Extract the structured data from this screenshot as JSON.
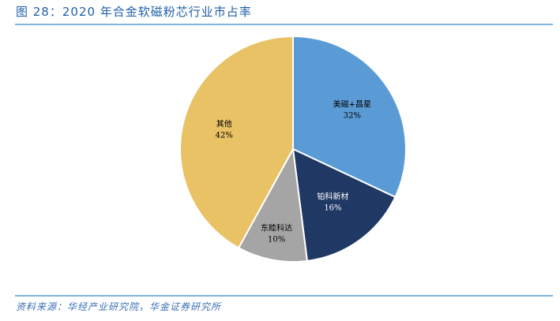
{
  "title": "图 28：2020 年合金软磁粉芯行业市占率",
  "source": "资料来源：华经产业研究院，华金证券研究所",
  "chart_data": {
    "type": "pie",
    "title": "图 28：2020 年合金软磁粉芯行业市占率",
    "start": "top",
    "direction": "clockwise",
    "slices": [
      {
        "label": "美磁+昌星",
        "value": 32,
        "text": "32%",
        "color": "#5b9bd5",
        "text_color": "#000000"
      },
      {
        "label": "铂科新材",
        "value": 16,
        "text": "16%",
        "color": "#203864",
        "text_color": "#ffffff"
      },
      {
        "label": "东睦科达",
        "value": 10,
        "text": "10%",
        "color": "#a5a5a5",
        "text_color": "#000000"
      },
      {
        "label": "其他",
        "value": 42,
        "text": "42%",
        "color": "#e8c265",
        "text_color": "#000000"
      }
    ]
  }
}
